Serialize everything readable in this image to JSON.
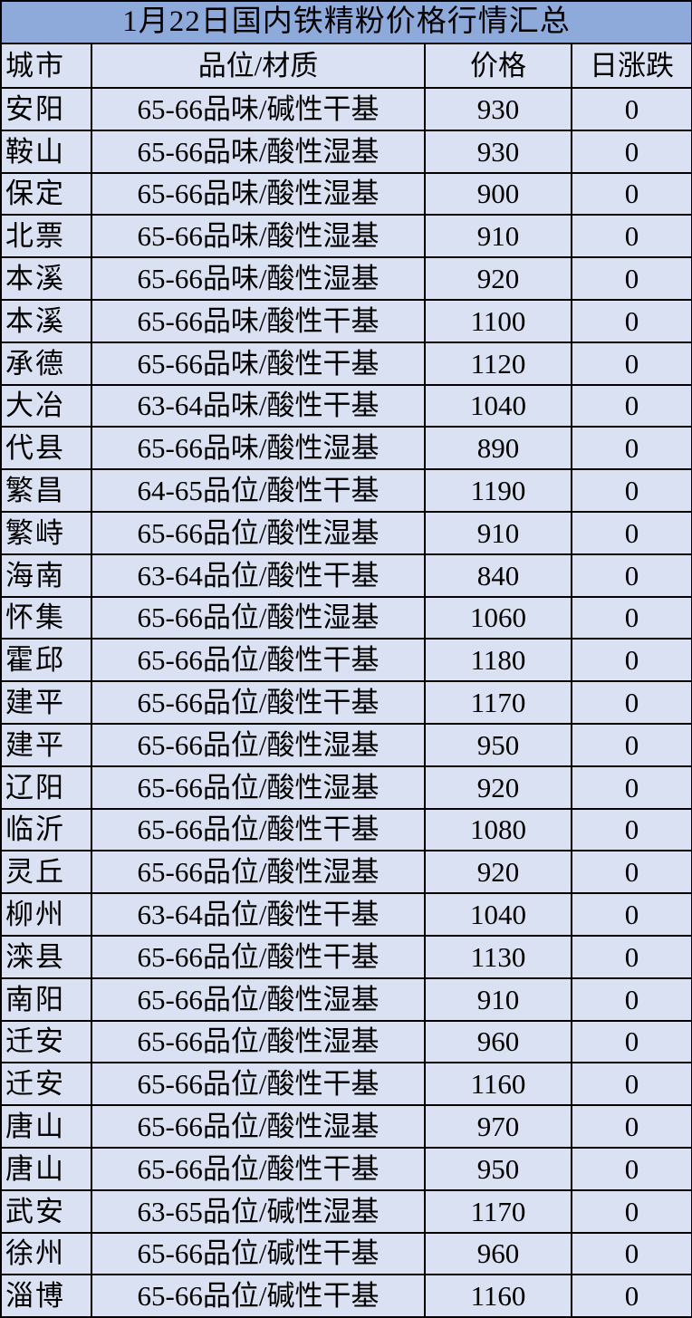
{
  "title": "1月22日国内铁精粉价格行情汇总",
  "colors": {
    "title_bg": "#8EAADB",
    "cell_bg": "#D9E1F2",
    "border": "#000000"
  },
  "headers": [
    "城市",
    "品位/材质",
    "价格",
    "日涨跌"
  ],
  "rows": [
    [
      "安阳",
      "65-66品味/碱性干基",
      "930",
      "0"
    ],
    [
      "鞍山",
      "65-66品味/酸性湿基",
      "930",
      "0"
    ],
    [
      "保定",
      "65-66品味/酸性湿基",
      "900",
      "0"
    ],
    [
      "北票",
      "65-66品味/酸性湿基",
      "910",
      "0"
    ],
    [
      "本溪",
      "65-66品味/酸性湿基",
      "920",
      "0"
    ],
    [
      "本溪",
      "65-66品味/酸性干基",
      "1100",
      "0"
    ],
    [
      "承德",
      "65-66品味/酸性干基",
      "1120",
      "0"
    ],
    [
      "大冶",
      "63-64品味/酸性干基",
      "1040",
      "0"
    ],
    [
      "代县",
      "65-66品味/酸性湿基",
      "890",
      "0"
    ],
    [
      "繁昌",
      "64-65品位/酸性干基",
      "1190",
      "0"
    ],
    [
      "繁峙",
      "65-66品位/酸性湿基",
      "910",
      "0"
    ],
    [
      "海南",
      "63-64品位/酸性干基",
      "840",
      "0"
    ],
    [
      "怀集",
      "65-66品位/酸性湿基",
      "1060",
      "0"
    ],
    [
      "霍邱",
      "65-66品位/酸性干基",
      "1180",
      "0"
    ],
    [
      "建平",
      "65-66品位/酸性干基",
      "1170",
      "0"
    ],
    [
      "建平",
      "65-66品位/酸性湿基",
      "950",
      "0"
    ],
    [
      "辽阳",
      "65-66品位/酸性湿基",
      "920",
      "0"
    ],
    [
      "临沂",
      "65-66品位/酸性干基",
      "1080",
      "0"
    ],
    [
      "灵丘",
      "65-66品位/酸性湿基",
      "920",
      "0"
    ],
    [
      "柳州",
      "63-64品位/酸性干基",
      "1040",
      "0"
    ],
    [
      "滦县",
      "65-66品位/酸性干基",
      "1130",
      "0"
    ],
    [
      "南阳",
      "65-66品位/酸性湿基",
      "910",
      "0"
    ],
    [
      "迁安",
      "65-66品位/酸性湿基",
      "960",
      "0"
    ],
    [
      "迁安",
      "65-66品位/酸性干基",
      "1160",
      "0"
    ],
    [
      "唐山",
      "65-66品位/酸性湿基",
      "970",
      "0"
    ],
    [
      "唐山",
      "65-66品位/酸性干基",
      "950",
      "0"
    ],
    [
      "武安",
      "63-65品位/碱性湿基",
      "1170",
      "0"
    ],
    [
      "徐州",
      "65-66品位/碱性干基",
      "960",
      "0"
    ],
    [
      "淄博",
      "65-66品位/碱性干基",
      "1160",
      "0"
    ]
  ]
}
